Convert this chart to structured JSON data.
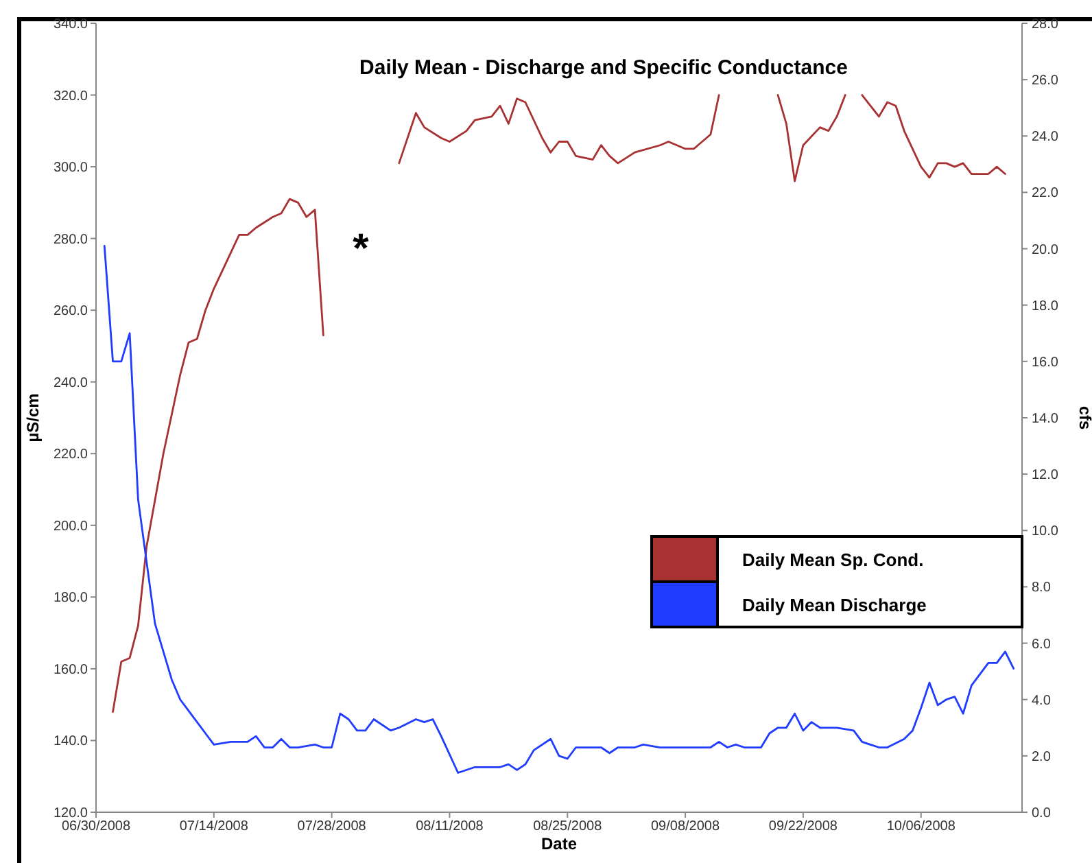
{
  "chart_data": {
    "type": "line",
    "title": "Daily Mean - Discharge and Specific Conductance",
    "xlabel": "Date",
    "ylabel": "µS/cm",
    "y2label": "cfs",
    "xlim": [
      "2008-06-30",
      "2008-10-18"
    ],
    "xticks": [
      {
        "value": "2008-06-30",
        "label": "06/30/2008"
      },
      {
        "value": "2008-07-14",
        "label": "07/14/2008"
      },
      {
        "value": "2008-07-28",
        "label": "07/28/2008"
      },
      {
        "value": "2008-08-11",
        "label": "08/11/2008"
      },
      {
        "value": "2008-08-25",
        "label": "08/25/2008"
      },
      {
        "value": "2008-09-08",
        "label": "09/08/2008"
      },
      {
        "value": "2008-09-22",
        "label": "09/22/2008"
      },
      {
        "value": "2008-10-06",
        "label": "10/06/2008"
      }
    ],
    "ylim": [
      120,
      340
    ],
    "yticks": [
      {
        "value": 120,
        "label": "120.0"
      },
      {
        "value": 140,
        "label": "140.0"
      },
      {
        "value": 160,
        "label": "160.0"
      },
      {
        "value": 180,
        "label": "180.0"
      },
      {
        "value": 200,
        "label": "200.0"
      },
      {
        "value": 220,
        "label": "220.0"
      },
      {
        "value": 240,
        "label": "240.0"
      },
      {
        "value": 260,
        "label": "260.0"
      },
      {
        "value": 280,
        "label": "280.0"
      },
      {
        "value": 300,
        "label": "300.0"
      },
      {
        "value": 320,
        "label": "320.0"
      },
      {
        "value": 340,
        "label": "340.0"
      }
    ],
    "y2lim": [
      0,
      28
    ],
    "y2ticks": [
      {
        "value": 0,
        "label": "0.0"
      },
      {
        "value": 2,
        "label": "2.0"
      },
      {
        "value": 4,
        "label": "4.0"
      },
      {
        "value": 6,
        "label": "6.0"
      },
      {
        "value": 8,
        "label": "8.0"
      },
      {
        "value": 10,
        "label": "10.0"
      },
      {
        "value": 12,
        "label": "12.0"
      },
      {
        "value": 14,
        "label": "14.0"
      },
      {
        "value": 16,
        "label": "16.0"
      },
      {
        "value": 18,
        "label": "18.0"
      },
      {
        "value": 20,
        "label": "20.0"
      },
      {
        "value": 22,
        "label": "22.0"
      },
      {
        "value": 24,
        "label": "24.0"
      },
      {
        "value": 26,
        "label": "26.0"
      },
      {
        "value": 28,
        "label": "28.0"
      }
    ],
    "grid": false,
    "legend": "right",
    "line_style": "solid",
    "marker": "none",
    "annotations": [
      "*"
    ],
    "series": [
      {
        "name": "Daily Mean Sp. Cond.",
        "color": "#a83232",
        "x": [
          "2008-07-02",
          "2008-07-03",
          "2008-07-04",
          "2008-07-05",
          "2008-07-06",
          "2008-07-08",
          "2008-07-10",
          "2008-07-11",
          "2008-07-12",
          "2008-07-13",
          "2008-07-14",
          "2008-07-16",
          "2008-07-17",
          "2008-07-18",
          "2008-07-19",
          "2008-07-21",
          "2008-07-22",
          "2008-07-23",
          "2008-07-24",
          "2008-07-25",
          "2008-07-26",
          "2008-07-27",
          "2008-07-31",
          "2008-08-05",
          "2008-08-07",
          "2008-08-08",
          "2008-08-10",
          "2008-08-11",
          "2008-08-13",
          "2008-08-14",
          "2008-08-16",
          "2008-08-17",
          "2008-08-18",
          "2008-08-19",
          "2008-08-20",
          "2008-08-22",
          "2008-08-23",
          "2008-08-24",
          "2008-08-25",
          "2008-08-26",
          "2008-08-28",
          "2008-08-29",
          "2008-08-30",
          "2008-08-31",
          "2008-09-02",
          "2008-09-05",
          "2008-09-06",
          "2008-09-08",
          "2008-09-09",
          "2008-09-11",
          "2008-09-12",
          "2008-09-15",
          "2008-09-19",
          "2008-09-20",
          "2008-09-21",
          "2008-09-22",
          "2008-09-24",
          "2008-09-25",
          "2008-09-26",
          "2008-09-27",
          "2008-09-28",
          "2008-09-29",
          "2008-10-01",
          "2008-10-02",
          "2008-10-03",
          "2008-10-04",
          "2008-10-06",
          "2008-10-07",
          "2008-10-08",
          "2008-10-09",
          "2008-10-10",
          "2008-10-11",
          "2008-10-12",
          "2008-10-14",
          "2008-10-15",
          "2008-10-16"
        ],
        "values": [
          148,
          162,
          163,
          172,
          194,
          220,
          242,
          251,
          252,
          260,
          266,
          276,
          281,
          281,
          283,
          286,
          287,
          291,
          290,
          286,
          288,
          253,
          null,
          301,
          315,
          311,
          308,
          307,
          310,
          313,
          314,
          317,
          312,
          319,
          318,
          308,
          304,
          307,
          307,
          303,
          302,
          306,
          303,
          301,
          304,
          306,
          307,
          305,
          305,
          309,
          320,
          null,
          320,
          312,
          296,
          306,
          311,
          310,
          314,
          320,
          null,
          320,
          314,
          318,
          317,
          310,
          300,
          297,
          301,
          301,
          300,
          301,
          298,
          298,
          300,
          298
        ]
      },
      {
        "name": "Daily Mean Discharge",
        "color": "#1f3cff",
        "axis": "y2",
        "x": [
          "2008-07-01",
          "2008-07-02",
          "2008-07-03",
          "2008-07-04",
          "2008-07-05",
          "2008-07-07",
          "2008-07-09",
          "2008-07-10",
          "2008-07-11",
          "2008-07-13",
          "2008-07-14",
          "2008-07-16",
          "2008-07-18",
          "2008-07-19",
          "2008-07-20",
          "2008-07-21",
          "2008-07-22",
          "2008-07-23",
          "2008-07-24",
          "2008-07-26",
          "2008-07-27",
          "2008-07-28",
          "2008-07-29",
          "2008-07-30",
          "2008-07-31",
          "2008-08-01",
          "2008-08-02",
          "2008-08-04",
          "2008-08-05",
          "2008-08-07",
          "2008-08-08",
          "2008-08-09",
          "2008-08-10",
          "2008-08-12",
          "2008-08-14",
          "2008-08-16",
          "2008-08-17",
          "2008-08-18",
          "2008-08-19",
          "2008-08-20",
          "2008-08-21",
          "2008-08-23",
          "2008-08-24",
          "2008-08-25",
          "2008-08-26",
          "2008-08-27",
          "2008-08-29",
          "2008-08-30",
          "2008-08-31",
          "2008-09-02",
          "2008-09-03",
          "2008-09-05",
          "2008-09-07",
          "2008-09-11",
          "2008-09-12",
          "2008-09-13",
          "2008-09-14",
          "2008-09-15",
          "2008-09-17",
          "2008-09-18",
          "2008-09-19",
          "2008-09-20",
          "2008-09-21",
          "2008-09-22",
          "2008-09-23",
          "2008-09-24",
          "2008-09-26",
          "2008-09-28",
          "2008-09-29",
          "2008-10-01",
          "2008-10-02",
          "2008-10-04",
          "2008-10-05",
          "2008-10-06",
          "2008-10-07",
          "2008-10-08",
          "2008-10-09",
          "2008-10-10",
          "2008-10-11",
          "2008-10-12",
          "2008-10-14",
          "2008-10-15",
          "2008-10-16",
          "2008-10-17"
        ],
        "values": [
          20.1,
          16.0,
          16.0,
          17.0,
          11.1,
          6.7,
          4.7,
          4.0,
          3.6,
          2.8,
          2.4,
          2.5,
          2.5,
          2.7,
          2.3,
          2.3,
          2.6,
          2.3,
          2.3,
          2.4,
          2.3,
          2.3,
          3.5,
          3.3,
          2.9,
          2.9,
          3.3,
          2.9,
          3.0,
          3.3,
          3.2,
          3.3,
          2.7,
          1.4,
          1.6,
          1.6,
          1.6,
          1.7,
          1.5,
          1.7,
          2.2,
          2.6,
          2.0,
          1.9,
          2.3,
          2.3,
          2.3,
          2.1,
          2.3,
          2.3,
          2.4,
          2.3,
          2.3,
          2.3,
          2.5,
          2.3,
          2.4,
          2.3,
          2.3,
          2.8,
          3.0,
          3.0,
          3.5,
          2.9,
          3.2,
          3.0,
          3.0,
          2.9,
          2.5,
          2.3,
          2.3,
          2.6,
          2.9,
          3.7,
          4.6,
          3.8,
          4.0,
          4.1,
          3.5,
          4.5,
          5.3,
          5.3,
          5.7,
          5.1
        ]
      }
    ]
  }
}
